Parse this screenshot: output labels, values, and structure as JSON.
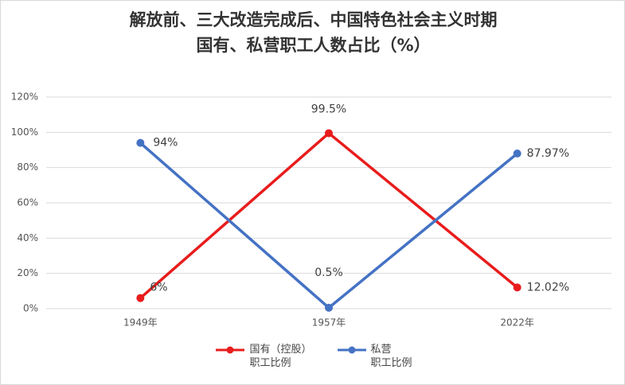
{
  "chart_data": {
    "type": "line",
    "title": "解放前、三大改造完成后、中国特色社会主义时期\n国有、私营职工人数占比（%）",
    "categories": [
      "1949年",
      "1957年",
      "2022年"
    ],
    "series": [
      {
        "name": "国有（控股）\n职工比例",
        "color": "#e81c1c",
        "values": [
          6,
          99.5,
          12.02
        ],
        "value_labels": [
          "6%",
          "99.5%",
          "12.02%"
        ]
      },
      {
        "name": "私营\n职工比例",
        "color": "#4472c4",
        "values": [
          94,
          0.5,
          87.97
        ],
        "value_labels": [
          "94%",
          "0.5%",
          "87.97%"
        ]
      }
    ],
    "ylim": [
      0,
      120
    ],
    "yticks": [
      {
        "value": 0,
        "label": "0%"
      },
      {
        "value": 20,
        "label": "20%"
      },
      {
        "value": 40,
        "label": "40%"
      },
      {
        "value": 60,
        "label": "60%"
      },
      {
        "value": 80,
        "label": "80%"
      },
      {
        "value": 100,
        "label": "100%"
      },
      {
        "value": 120,
        "label": "120%"
      }
    ],
    "grid": true,
    "legend": "bottom"
  }
}
